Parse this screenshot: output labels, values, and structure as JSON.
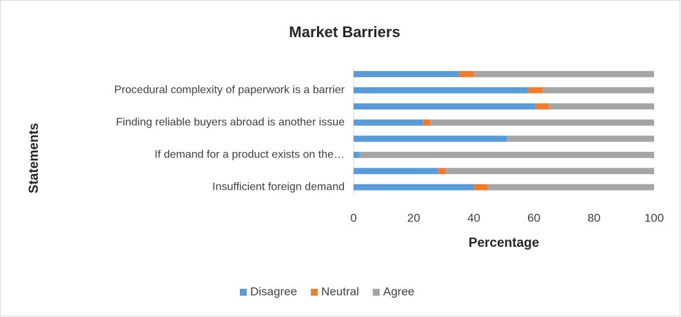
{
  "chart_data": {
    "type": "stacked-bar-horizontal",
    "title": "Market Barriers",
    "x_label": "Percentage",
    "y_label": "Statements",
    "categories": [
      null,
      "Procedural complexity of paperwork is a barrier",
      null,
      "Finding reliable buyers abroad is another issue",
      null,
      "If demand for a product exists on the…",
      null,
      "Insufficient foreign demand"
    ],
    "series": [
      {
        "name": "Disagree",
        "color": "#5b9bd5",
        "values": [
          35,
          58,
          60.5,
          23,
          51,
          2,
          28,
          40
        ]
      },
      {
        "name": "Neutral",
        "color": "#ed7d31",
        "values": [
          5,
          5,
          4.5,
          2.5,
          0,
          0,
          2.5,
          4.5
        ]
      },
      {
        "name": "Agree",
        "color": "#a5a5a5",
        "values": [
          60,
          37,
          35,
          74.5,
          49,
          98,
          69.5,
          55.5
        ]
      }
    ],
    "xlim": [
      0,
      100
    ],
    "xticks": [
      0,
      20,
      40,
      60,
      80,
      100
    ],
    "legend": "bottom"
  }
}
